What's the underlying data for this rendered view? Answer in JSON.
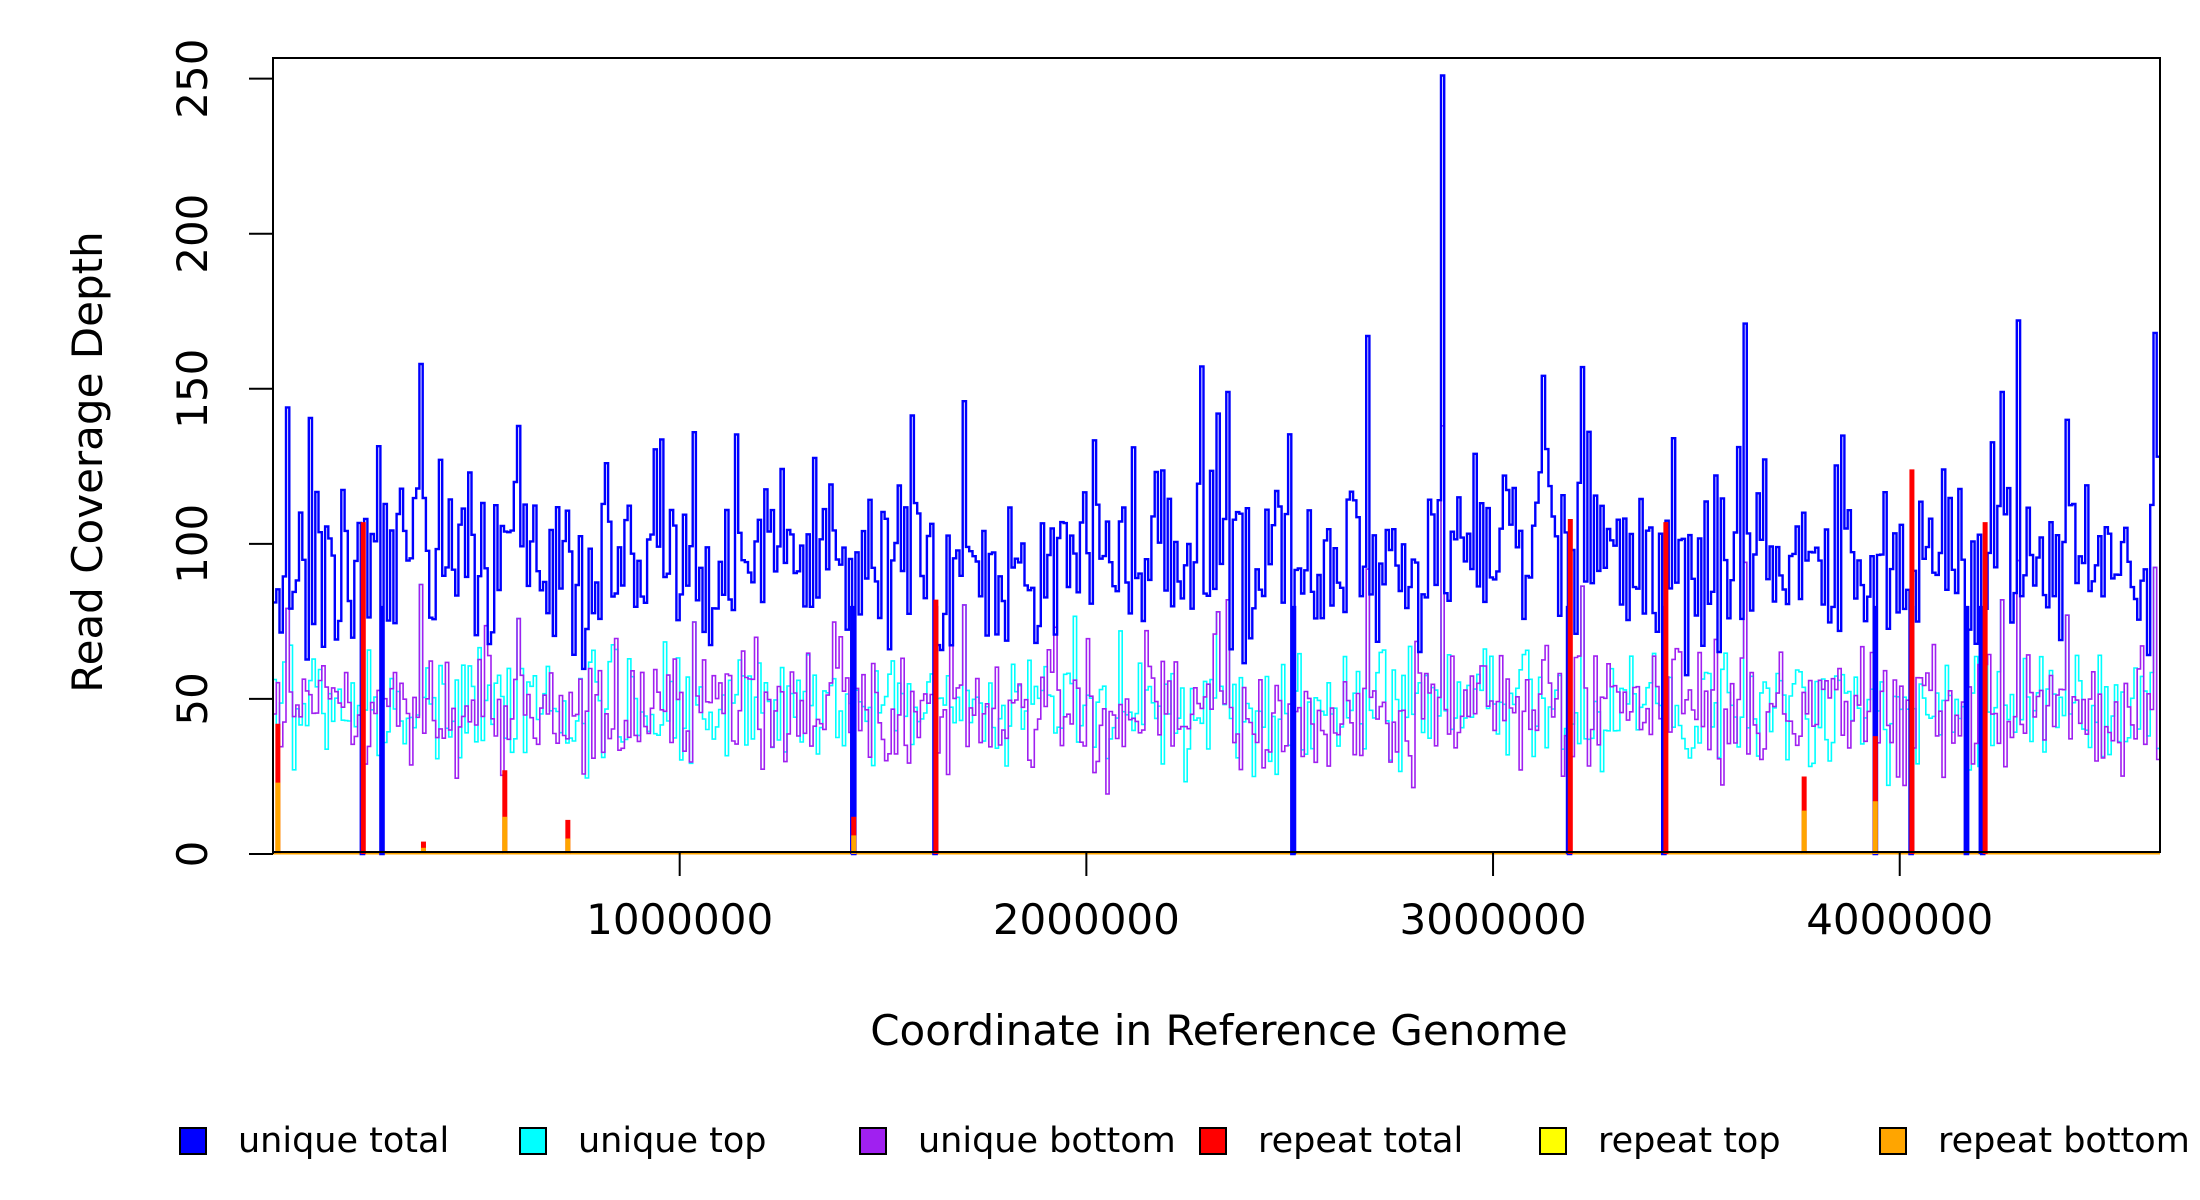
{
  "chart_data": {
    "type": "line",
    "title": "",
    "xlabel": "Coordinate in Reference Genome",
    "ylabel": "Read Coverage Depth",
    "xlim": [
      0,
      4640000
    ],
    "ylim": [
      0,
      256
    ],
    "x_ticks": [
      1000000,
      2000000,
      3000000,
      4000000
    ],
    "x_tick_labels": [
      "1000000",
      "2000000",
      "3000000",
      "4000000"
    ],
    "y_ticks": [
      0,
      50,
      100,
      150,
      200,
      250
    ],
    "y_tick_labels": [
      "0",
      "50",
      "100",
      "150",
      "200",
      "250"
    ],
    "bin_size": 8000,
    "series_meta": [
      {
        "name": "unique total",
        "color": "#0000ff",
        "mean": 95,
        "noise": 14
      },
      {
        "name": "unique top",
        "color": "#00ffff",
        "mean": 48,
        "noise": 10
      },
      {
        "name": "unique bottom",
        "color": "#a020f0",
        "mean": 47,
        "noise": 11
      },
      {
        "name": "repeat total",
        "color": "#ff0000"
      },
      {
        "name": "repeat top",
        "color": "#ffff00"
      },
      {
        "name": "repeat bottom",
        "color": "#ffa500"
      }
    ],
    "peaks": [
      {
        "x": 35000,
        "y": 144
      },
      {
        "x": 365000,
        "y": 158
      },
      {
        "x": 605000,
        "y": 138
      },
      {
        "x": 1035000,
        "y": 136
      },
      {
        "x": 1700000,
        "y": 146
      },
      {
        "x": 2320000,
        "y": 142
      },
      {
        "x": 2350000,
        "y": 149
      },
      {
        "x": 2690000,
        "y": 167
      },
      {
        "x": 2875000,
        "y": 251
      },
      {
        "x": 3220000,
        "y": 157
      },
      {
        "x": 3620000,
        "y": 171
      },
      {
        "x": 4250000,
        "y": 149
      },
      {
        "x": 4290000,
        "y": 172
      },
      {
        "x": 4410000,
        "y": 140
      },
      {
        "x": 4625000,
        "y": 168
      }
    ],
    "dropouts": [
      220000,
      268000,
      1425000,
      1630000,
      2510000,
      3185000,
      3420000,
      3940000,
      4030000,
      4165000,
      4200000
    ],
    "repeat_spikes": [
      {
        "x": 12000,
        "total": 42,
        "bottom": 23
      },
      {
        "x": 222000,
        "total": 107,
        "bottom": 0
      },
      {
        "x": 370000,
        "total": 4,
        "bottom": 2
      },
      {
        "x": 570000,
        "total": 27,
        "bottom": 12
      },
      {
        "x": 725000,
        "total": 11,
        "bottom": 5
      },
      {
        "x": 1428000,
        "total": 12,
        "bottom": 6
      },
      {
        "x": 1630000,
        "total": 82,
        "bottom": 0
      },
      {
        "x": 3190000,
        "total": 108,
        "bottom": 0
      },
      {
        "x": 3425000,
        "total": 107,
        "bottom": 0
      },
      {
        "x": 3765000,
        "total": 25,
        "bottom": 14
      },
      {
        "x": 3940000,
        "total": 38,
        "bottom": 17
      },
      {
        "x": 4030000,
        "total": 124,
        "bottom": 0
      },
      {
        "x": 4210000,
        "total": 107,
        "bottom": 0
      }
    ]
  },
  "legend": [
    {
      "label": "unique total",
      "color": "#0000ff"
    },
    {
      "label": "unique top",
      "color": "#00ffff"
    },
    {
      "label": "unique bottom",
      "color": "#a020f0"
    },
    {
      "label": "repeat total",
      "color": "#ff0000"
    },
    {
      "label": "repeat top",
      "color": "#ffff00"
    },
    {
      "label": "repeat bottom",
      "color": "#ffa500"
    }
  ]
}
